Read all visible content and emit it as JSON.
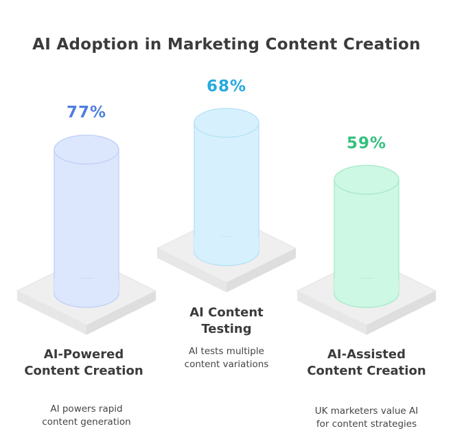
{
  "title": "AI Adoption in Marketing Content Creation",
  "items": [
    {
      "percent": "77%",
      "value": 77,
      "heading": "AI-Powered Content Creation",
      "description": "AI powers rapid content generation",
      "color": "#4f7fde",
      "fill": "#dce6fd",
      "stroke": "#c3d3f7"
    },
    {
      "percent": "68%",
      "value": 68,
      "heading": "AI Content Testing",
      "description": "AI tests multiple content variations",
      "color": "#26a9df",
      "fill": "#d6f1fd",
      "stroke": "#b9e3f6"
    },
    {
      "percent": "59%",
      "value": 59,
      "heading": "AI-Assisted Content Creation",
      "description": "UK marketers value AI for content strategies",
      "color": "#35c07e",
      "fill": "#cdf8e3",
      "stroke": "#abebcc"
    }
  ]
}
